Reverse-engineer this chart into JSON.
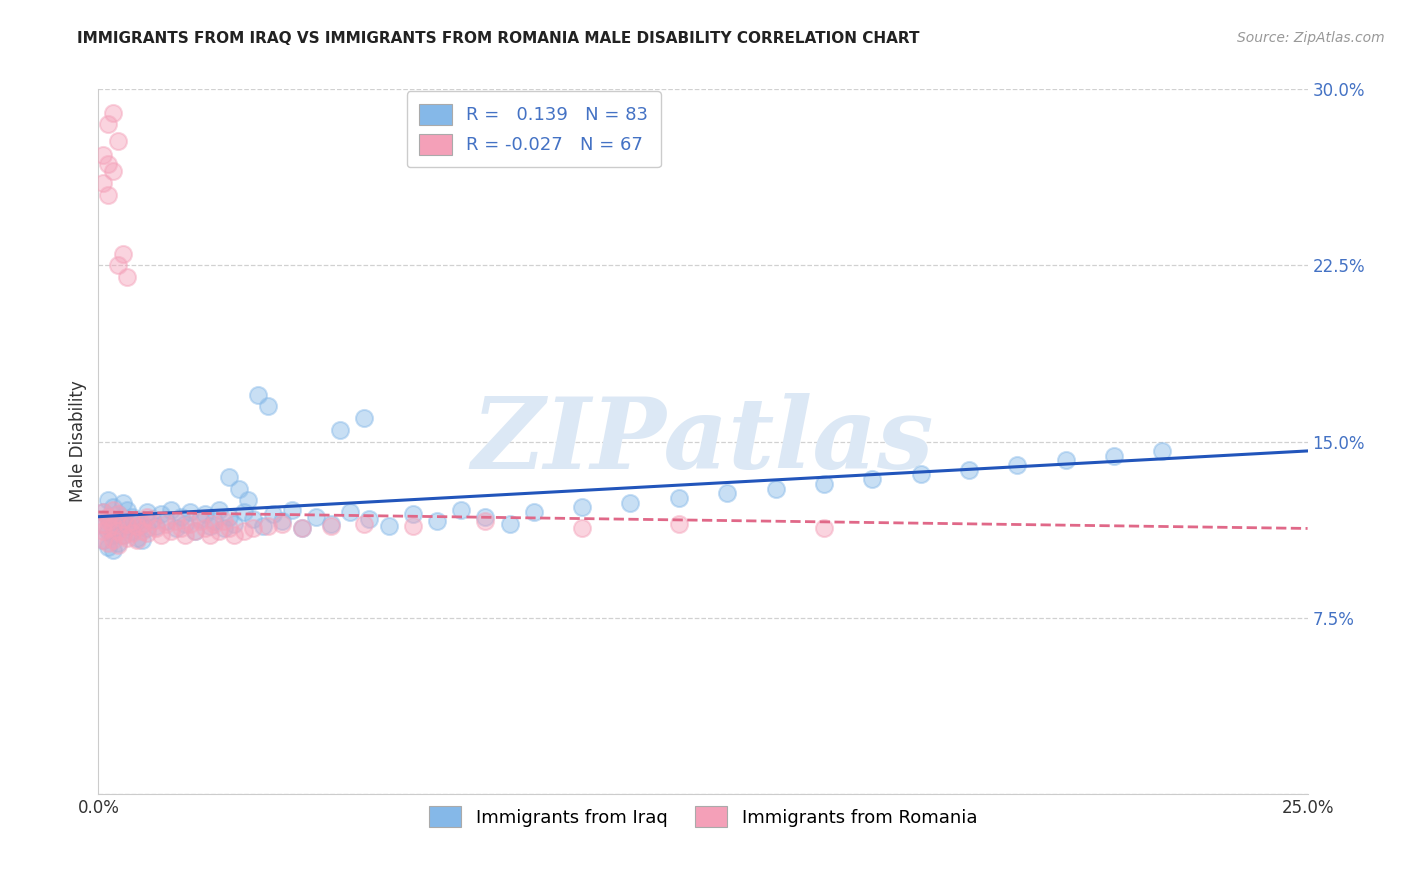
{
  "title": "IMMIGRANTS FROM IRAQ VS IMMIGRANTS FROM ROMANIA MALE DISABILITY CORRELATION CHART",
  "source": "Source: ZipAtlas.com",
  "ylabel": "Male Disability",
  "xlim": [
    0.0,
    0.25
  ],
  "ylim": [
    0.0,
    0.3
  ],
  "iraq_R": 0.139,
  "iraq_N": 83,
  "romania_R": -0.027,
  "romania_N": 67,
  "iraq_color": "#85b8e8",
  "romania_color": "#f4a0b8",
  "iraq_line_color": "#2255bb",
  "romania_line_color": "#e06888",
  "background_color": "#ffffff",
  "grid_color": "#cccccc",
  "watermark_color": "#dce8f5",
  "title_color": "#222222",
  "source_color": "#999999",
  "ylabel_color": "#333333",
  "ytick_color": "#4472c4",
  "xtick_color": "#333333",
  "iraq_x": [
    0.001,
    0.001,
    0.001,
    0.002,
    0.002,
    0.002,
    0.002,
    0.003,
    0.003,
    0.003,
    0.003,
    0.004,
    0.004,
    0.004,
    0.005,
    0.005,
    0.005,
    0.006,
    0.006,
    0.007,
    0.007,
    0.008,
    0.008,
    0.009,
    0.009,
    0.01,
    0.01,
    0.011,
    0.012,
    0.013,
    0.014,
    0.015,
    0.016,
    0.017,
    0.018,
    0.019,
    0.02,
    0.021,
    0.022,
    0.023,
    0.024,
    0.025,
    0.026,
    0.027,
    0.028,
    0.03,
    0.032,
    0.034,
    0.036,
    0.038,
    0.04,
    0.042,
    0.045,
    0.048,
    0.052,
    0.056,
    0.06,
    0.065,
    0.07,
    0.075,
    0.08,
    0.085,
    0.09,
    0.1,
    0.11,
    0.12,
    0.13,
    0.14,
    0.15,
    0.16,
    0.17,
    0.18,
    0.19,
    0.2,
    0.21,
    0.22,
    0.05,
    0.055,
    0.035,
    0.033,
    0.031,
    0.029,
    0.027
  ],
  "iraq_y": [
    0.12,
    0.115,
    0.108,
    0.125,
    0.118,
    0.112,
    0.105,
    0.122,
    0.116,
    0.11,
    0.104,
    0.119,
    0.113,
    0.107,
    0.124,
    0.117,
    0.11,
    0.121,
    0.114,
    0.118,
    0.112,
    0.116,
    0.109,
    0.115,
    0.108,
    0.12,
    0.113,
    0.117,
    0.114,
    0.119,
    0.116,
    0.121,
    0.113,
    0.118,
    0.115,
    0.12,
    0.112,
    0.117,
    0.119,
    0.114,
    0.116,
    0.121,
    0.113,
    0.118,
    0.115,
    0.12,
    0.117,
    0.114,
    0.119,
    0.116,
    0.121,
    0.113,
    0.118,
    0.115,
    0.12,
    0.117,
    0.114,
    0.119,
    0.116,
    0.121,
    0.118,
    0.115,
    0.12,
    0.122,
    0.124,
    0.126,
    0.128,
    0.13,
    0.132,
    0.134,
    0.136,
    0.138,
    0.14,
    0.142,
    0.144,
    0.146,
    0.155,
    0.16,
    0.165,
    0.17,
    0.125,
    0.13,
    0.135
  ],
  "romania_x": [
    0.001,
    0.001,
    0.001,
    0.001,
    0.002,
    0.002,
    0.002,
    0.002,
    0.003,
    0.003,
    0.003,
    0.004,
    0.004,
    0.004,
    0.005,
    0.005,
    0.006,
    0.006,
    0.007,
    0.007,
    0.008,
    0.008,
    0.009,
    0.009,
    0.01,
    0.01,
    0.011,
    0.012,
    0.013,
    0.014,
    0.015,
    0.016,
    0.017,
    0.018,
    0.019,
    0.02,
    0.021,
    0.022,
    0.023,
    0.024,
    0.025,
    0.026,
    0.027,
    0.028,
    0.03,
    0.032,
    0.035,
    0.038,
    0.042,
    0.048,
    0.055,
    0.065,
    0.08,
    0.1,
    0.12,
    0.15,
    0.003,
    0.002,
    0.004,
    0.001,
    0.002,
    0.003,
    0.001,
    0.002,
    0.005,
    0.004,
    0.006
  ],
  "romania_y": [
    0.12,
    0.115,
    0.108,
    0.112,
    0.118,
    0.113,
    0.107,
    0.116,
    0.121,
    0.114,
    0.108,
    0.119,
    0.112,
    0.106,
    0.117,
    0.11,
    0.115,
    0.109,
    0.116,
    0.111,
    0.114,
    0.108,
    0.115,
    0.112,
    0.118,
    0.111,
    0.116,
    0.113,
    0.11,
    0.115,
    0.112,
    0.116,
    0.113,
    0.11,
    0.115,
    0.112,
    0.116,
    0.113,
    0.11,
    0.115,
    0.112,
    0.116,
    0.113,
    0.11,
    0.112,
    0.113,
    0.114,
    0.115,
    0.113,
    0.114,
    0.115,
    0.114,
    0.116,
    0.113,
    0.115,
    0.113,
    0.29,
    0.285,
    0.278,
    0.272,
    0.268,
    0.265,
    0.26,
    0.255,
    0.23,
    0.225,
    0.22
  ]
}
